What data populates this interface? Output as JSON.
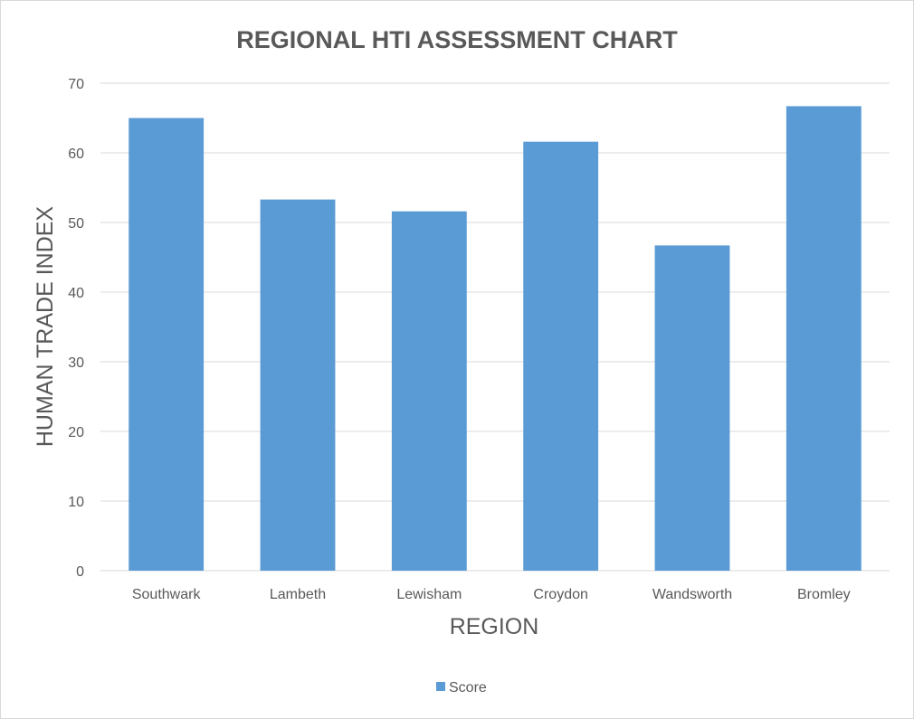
{
  "chart_data": {
    "type": "bar",
    "title": "REGIONAL HTI ASSESSMENT CHART",
    "xlabel": "REGION",
    "ylabel": "HUMAN TRADE INDEX",
    "categories": [
      "Southwark",
      "Lambeth",
      "Lewisham",
      "Croydon",
      "Wandsworth",
      "Bromley"
    ],
    "series": [
      {
        "name": "Score",
        "color": "#5b9bd5",
        "values": [
          65,
          53.3,
          51.6,
          61.6,
          46.7,
          66.7
        ]
      }
    ],
    "ylim": [
      0,
      70
    ],
    "yticks": [
      0,
      10,
      20,
      30,
      40,
      50,
      60,
      70
    ],
    "grid": true,
    "legend_position": "bottom"
  }
}
